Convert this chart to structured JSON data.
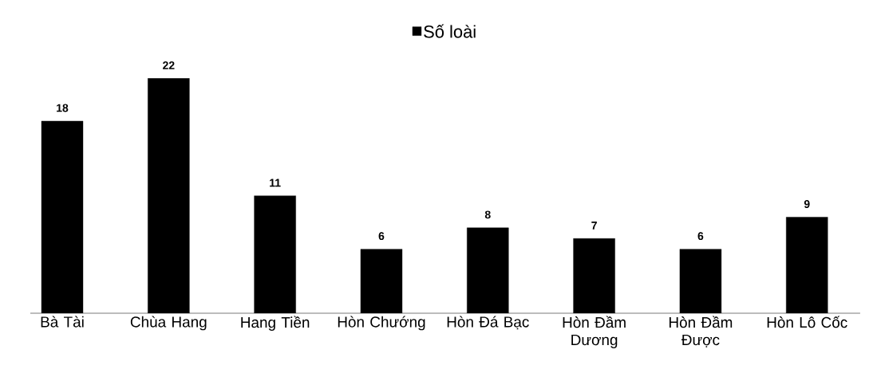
{
  "chart_data": {
    "type": "bar",
    "categories": [
      "Bà Tài",
      "Chùa Hang",
      "Hang Tiền",
      "Hòn Chướng",
      "Hòn Đá Bạc",
      "Hòn Đầm Dương",
      "Hòn Đầm Được",
      "Hòn Lô Cốc"
    ],
    "series": [
      {
        "name": "Số loài",
        "color": "#000000",
        "values": [
          18,
          22,
          11,
          6,
          8,
          7,
          6,
          9
        ]
      }
    ],
    "data_labels": true,
    "legend": "top",
    "grid": false
  }
}
